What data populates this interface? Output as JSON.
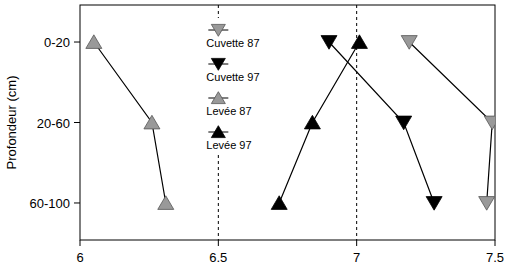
{
  "chart_data": {
    "type": "line",
    "ylabel": "Profondeur (cm)",
    "categories": [
      "0-20",
      "20-60",
      "60-100"
    ],
    "xlim": [
      6,
      7.5
    ],
    "xticks": [
      6,
      6.5,
      7,
      7.5
    ],
    "grid": true,
    "legend": "top",
    "orientation": "horizontal",
    "series": [
      {
        "name": "Cuvette 87",
        "color": "#999999",
        "marker": "triangle-down",
        "values": [
          7.19,
          7.49,
          7.47
        ]
      },
      {
        "name": "Cuvette 97",
        "color": "#000000",
        "marker": "triangle-down",
        "values": [
          6.9,
          7.17,
          7.28
        ]
      },
      {
        "name": "Levée 87",
        "color": "#999999",
        "marker": "triangle-up",
        "values": [
          6.05,
          6.26,
          6.31
        ]
      },
      {
        "name": "Levée 97",
        "color": "#000000",
        "marker": "triangle-up",
        "values": [
          7.01,
          6.84,
          6.72
        ]
      }
    ]
  }
}
